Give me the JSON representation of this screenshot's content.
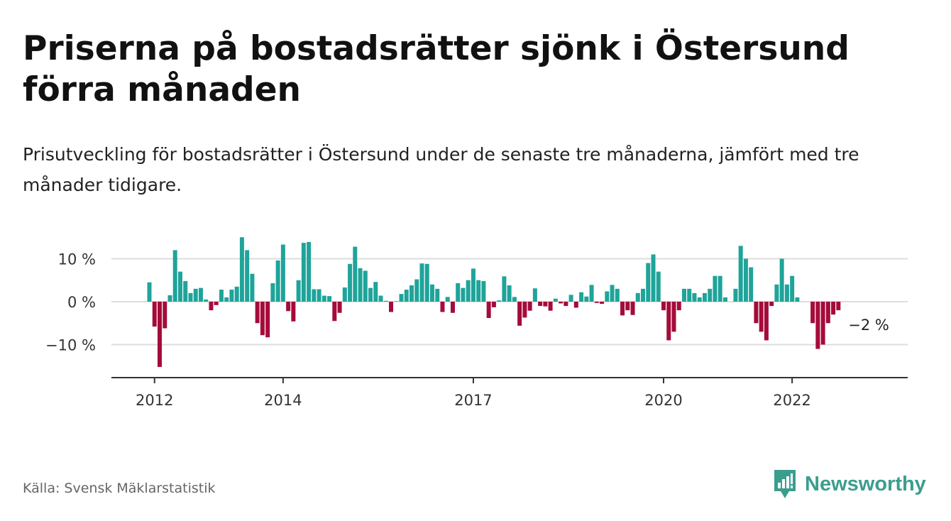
{
  "title": "Priserna på bostadsrätter sjönk i Östersund förra månaden",
  "subtitle": "Prisutveckling för bostadsrätter i Östersund under de senaste tre månaderna, jämfört med tre månader tidigare.",
  "source": "Källa: Svensk Mäklarstatistik",
  "brand": "Newsworthy",
  "colors": {
    "positive": "#1fa49a",
    "negative": "#a50b3a",
    "grid": "#dddddd",
    "axis": "#333333",
    "brand": "#3a9e8f"
  },
  "chart_data": {
    "type": "bar",
    "ylim": [
      -17,
      18
    ],
    "yticks": [
      {
        "value": 10,
        "label": "10 %"
      },
      {
        "value": 0,
        "label": "0 %"
      },
      {
        "value": -10,
        "label": "−10 %"
      }
    ],
    "xticks": [
      {
        "index": 1,
        "label": "2012"
      },
      {
        "index": 26,
        "label": "2014"
      },
      {
        "index": 63,
        "label": "2017"
      },
      {
        "index": 100,
        "label": "2020"
      },
      {
        "index": 125,
        "label": "2022"
      }
    ],
    "annotation": {
      "index": 138,
      "label": "−2 %"
    },
    "values": [
      4.5,
      -5.8,
      -15.2,
      -6.2,
      1.5,
      12,
      7,
      4.8,
      2,
      3,
      3.2,
      0.5,
      -2,
      -0.8,
      2.8,
      1,
      2.8,
      3.5,
      15,
      12,
      6.5,
      -5,
      -7.8,
      -8.3,
      4.3,
      9.6,
      13.3,
      -2.2,
      -4.6,
      5,
      13.7,
      13.9,
      2.9,
      2.9,
      1.4,
      1.3,
      -4.5,
      -2.6,
      3.3,
      8.8,
      12.8,
      7.8,
      7.2,
      3.2,
      4.6,
      1.4,
      0.2,
      -2.4,
      0.1,
      1.8,
      2.8,
      3.8,
      5.2,
      8.9,
      8.8,
      4,
      3,
      -2.4,
      1.1,
      -2.6,
      4.3,
      3.2,
      5,
      7.7,
      5,
      4.8,
      -3.8,
      -1.3,
      0.3,
      5.9,
      3.8,
      1.1,
      -5.6,
      -3.7,
      -2.1,
      3.1,
      -1,
      -1.1,
      -2.1,
      0.7,
      -0.4,
      -1,
      1.6,
      -1.4,
      2.2,
      1.2,
      3.9,
      -0.3,
      -0.5,
      2.4,
      3.9,
      3,
      -3.2,
      -2,
      -3.1,
      2,
      3,
      9,
      11,
      7,
      -2,
      -9,
      -7,
      -2,
      3,
      3,
      2,
      1,
      2,
      3,
      6,
      6,
      1,
      0,
      3,
      13,
      10,
      8,
      -5,
      -7,
      -9,
      -1,
      4,
      10,
      4,
      6,
      1,
      0,
      0,
      -5,
      -11,
      -10,
      -5,
      -3,
      -2
    ]
  }
}
